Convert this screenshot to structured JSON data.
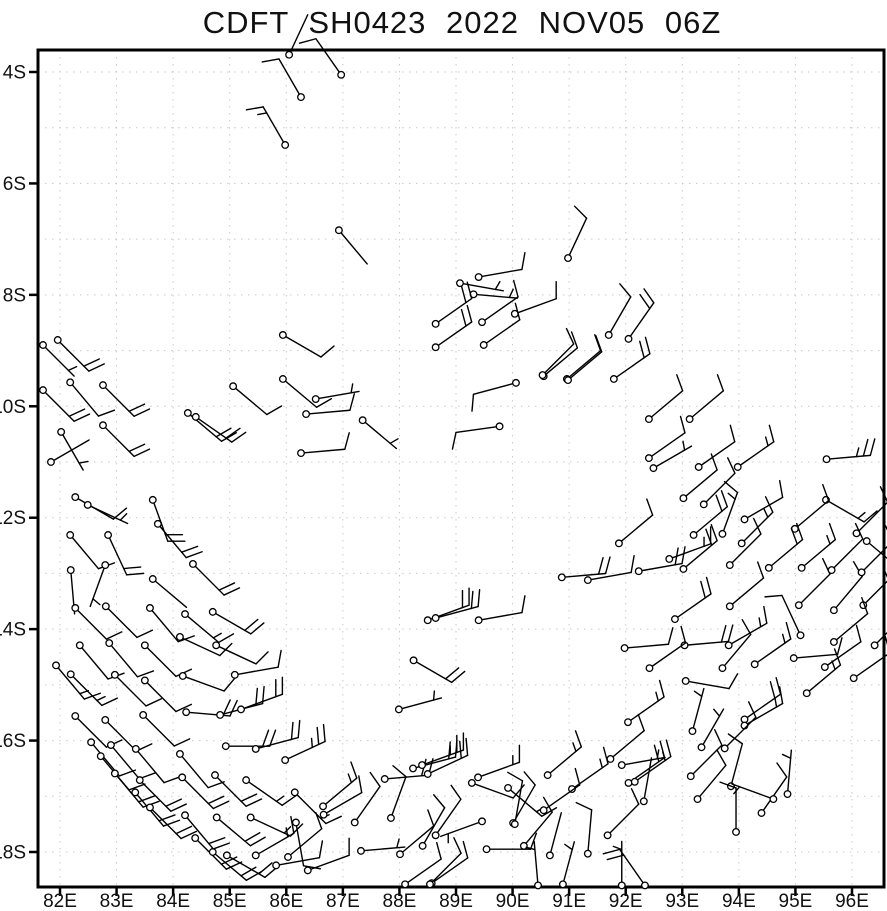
{
  "title": "CDFT SH0423 2022 NOV05 06Z",
  "axes": {
    "x": {
      "tick_labels": [
        "82E",
        "83E",
        "84E",
        "85E",
        "86E",
        "87E",
        "88E",
        "89E",
        "90E",
        "91E",
        "92E",
        "93E",
        "94E",
        "95E",
        "96E"
      ],
      "tick_values": [
        82,
        83,
        84,
        85,
        86,
        87,
        88,
        89,
        90,
        91,
        92,
        93,
        94,
        95,
        96
      ]
    },
    "y": {
      "tick_labels": [
        "4S",
        "6S",
        "8S",
        "10S",
        "12S",
        "14S",
        "16S",
        "18S"
      ],
      "tick_values": [
        4,
        6,
        8,
        10,
        12,
        14,
        16,
        18
      ]
    }
  },
  "chart_data": {
    "type": "scatter",
    "subtype": "wind-barb-field",
    "title": "CDFT SH0423 2022 NOV05 06Z",
    "x_axis": "longitude_deg_east",
    "y_axis": "latitude_deg_south",
    "x_range": [
      81.6,
      96.6
    ],
    "y_range": [
      3.6,
      18.6
    ],
    "grid": "dotted 1-degree spacing both axes",
    "colors": {
      "ink": "#000000",
      "grid": "#c9c9c9",
      "background": "#ffffff"
    },
    "barb_fields": [
      "lon_deg_east",
      "lat_deg_south",
      "staff_dir_deg_cw_from_north",
      "speed_kt"
    ],
    "barbs": [
      [
        86.97,
        4.05,
        325,
        10
      ],
      [
        86.26,
        4.45,
        330,
        10
      ],
      [
        85.98,
        5.31,
        330,
        15
      ],
      [
        86.05,
        3.69,
        25,
        3
      ],
      [
        86.93,
        6.84,
        140,
        3
      ],
      [
        90.98,
        7.34,
        25,
        10
      ],
      [
        89.4,
        7.68,
        80,
        10
      ],
      [
        89.07,
        7.79,
        100,
        5
      ],
      [
        89.31,
        7.99,
        95,
        5
      ],
      [
        88.64,
        8.52,
        55,
        20
      ],
      [
        90.04,
        8.34,
        70,
        10
      ],
      [
        89.46,
        8.49,
        55,
        10
      ],
      [
        89.49,
        8.9,
        55,
        10
      ],
      [
        88.64,
        8.94,
        55,
        20
      ],
      [
        90.55,
        9.46,
        50,
        10
      ],
      [
        90.96,
        9.51,
        50,
        10
      ],
      [
        90.06,
        9.58,
        255,
        10
      ],
      [
        89.77,
        10.36,
        262,
        10
      ],
      [
        87.35,
        10.25,
        130,
        5
      ],
      [
        91.7,
        8.72,
        30,
        10
      ],
      [
        92.05,
        8.79,
        35,
        20
      ],
      [
        81.7,
        8.9,
        135,
        5
      ],
      [
        81.96,
        8.81,
        135,
        20
      ],
      [
        82.18,
        9.57,
        140,
        10
      ],
      [
        81.7,
        9.71,
        135,
        20
      ],
      [
        82.76,
        9.62,
        135,
        20
      ],
      [
        82.02,
        10.46,
        150,
        5
      ],
      [
        81.84,
        11.0,
        60,
        3
      ],
      [
        82.76,
        10.34,
        135,
        20
      ],
      [
        82.27,
        11.63,
        120,
        10
      ],
      [
        82.49,
        11.77,
        115,
        5
      ],
      [
        83.64,
        11.68,
        160,
        20
      ],
      [
        83.73,
        12.11,
        140,
        20
      ],
      [
        82.18,
        12.31,
        140,
        10
      ],
      [
        82.85,
        12.31,
        155,
        20
      ],
      [
        82.19,
        12.94,
        175,
        3
      ],
      [
        82.8,
        12.85,
        200,
        5
      ],
      [
        83.64,
        13.1,
        130,
        3
      ],
      [
        84.35,
        12.83,
        135,
        20
      ],
      [
        85.94,
        8.72,
        120,
        10
      ],
      [
        85.06,
        9.64,
        130,
        10
      ],
      [
        85.94,
        9.51,
        130,
        10
      ],
      [
        86.52,
        9.87,
        80,
        5
      ],
      [
        86.35,
        10.14,
        85,
        10
      ],
      [
        86.26,
        10.84,
        85,
        10
      ],
      [
        84.26,
        10.12,
        130,
        20
      ],
      [
        84.4,
        10.19,
        125,
        20
      ],
      [
        82.27,
        13.62,
        135,
        10
      ],
      [
        82.81,
        13.59,
        135,
        10
      ],
      [
        83.59,
        13.62,
        140,
        10
      ],
      [
        84.21,
        13.73,
        130,
        15
      ],
      [
        84.7,
        13.69,
        120,
        20
      ],
      [
        82.35,
        14.29,
        140,
        10
      ],
      [
        82.87,
        14.25,
        140,
        10
      ],
      [
        83.5,
        14.29,
        135,
        10
      ],
      [
        84.12,
        14.14,
        115,
        10
      ],
      [
        84.76,
        14.29,
        115,
        10
      ],
      [
        81.93,
        14.65,
        140,
        15
      ],
      [
        82.19,
        14.81,
        135,
        15
      ],
      [
        82.97,
        14.82,
        135,
        10
      ],
      [
        83.5,
        14.92,
        135,
        10
      ],
      [
        84.17,
        14.84,
        110,
        10
      ],
      [
        85.09,
        14.82,
        80,
        10
      ],
      [
        82.27,
        15.56,
        135,
        10
      ],
      [
        82.8,
        15.63,
        135,
        10
      ],
      [
        83.47,
        15.54,
        135,
        10
      ],
      [
        84.23,
        15.49,
        95,
        20
      ],
      [
        84.83,
        15.54,
        75,
        20
      ],
      [
        85.2,
        15.44,
        70,
        20
      ],
      [
        82.55,
        16.03,
        140,
        10
      ],
      [
        82.9,
        16.08,
        140,
        10
      ],
      [
        83.34,
        16.15,
        140,
        10
      ],
      [
        84.12,
        16.24,
        140,
        10
      ],
      [
        84.93,
        16.1,
        90,
        20
      ],
      [
        85.46,
        16.15,
        75,
        20
      ],
      [
        85.98,
        16.35,
        65,
        25
      ],
      [
        82.72,
        16.28,
        140,
        10
      ],
      [
        82.97,
        16.59,
        140,
        20
      ],
      [
        83.41,
        16.71,
        135,
        20
      ],
      [
        83.33,
        16.93,
        140,
        20
      ],
      [
        83.59,
        17.2,
        135,
        20
      ],
      [
        84.16,
        16.66,
        135,
        20
      ],
      [
        84.74,
        16.62,
        135,
        20
      ],
      [
        84.21,
        17.34,
        140,
        20
      ],
      [
        84.39,
        17.75,
        135,
        20
      ],
      [
        84.77,
        17.38,
        130,
        20
      ],
      [
        84.7,
        18.0,
        130,
        20
      ],
      [
        84.95,
        18.06,
        120,
        20
      ],
      [
        85.29,
        16.71,
        125,
        15
      ],
      [
        86.15,
        16.93,
        135,
        15
      ],
      [
        85.37,
        17.38,
        115,
        15
      ],
      [
        86.17,
        17.47,
        170,
        10
      ],
      [
        85.46,
        18.06,
        60,
        15
      ],
      [
        85.82,
        18.24,
        80,
        10
      ],
      [
        86.03,
        18.09,
        50,
        10
      ],
      [
        86.38,
        18.33,
        70,
        10
      ],
      [
        88.5,
        13.84,
        70,
        20
      ],
      [
        88.64,
        13.8,
        75,
        20
      ],
      [
        89.4,
        13.84,
        80,
        10
      ],
      [
        88.25,
        14.56,
        120,
        20
      ],
      [
        87.99,
        15.44,
        75,
        5
      ],
      [
        87.74,
        16.69,
        85,
        20
      ],
      [
        88.24,
        16.5,
        75,
        20
      ],
      [
        88.4,
        16.44,
        70,
        25
      ],
      [
        88.5,
        16.6,
        65,
        20
      ],
      [
        89.39,
        16.66,
        70,
        15
      ],
      [
        89.28,
        16.76,
        110,
        10
      ],
      [
        89.92,
        16.85,
        130,
        15
      ],
      [
        90.01,
        17.48,
        30,
        10
      ],
      [
        90.62,
        16.62,
        50,
        15
      ],
      [
        91.05,
        16.87,
        55,
        15
      ],
      [
        90.55,
        17.25,
        55,
        10
      ],
      [
        86.65,
        17.18,
        50,
        15
      ],
      [
        86.66,
        17.33,
        60,
        10
      ],
      [
        87.21,
        17.47,
        35,
        10
      ],
      [
        87.85,
        17.39,
        20,
        10
      ],
      [
        87.32,
        17.98,
        85,
        5
      ],
      [
        88.01,
        18.04,
        50,
        10
      ],
      [
        88.41,
        17.89,
        30,
        10
      ],
      [
        88.64,
        17.7,
        35,
        10
      ],
      [
        89.46,
        17.45,
        250,
        5
      ],
      [
        90.04,
        17.5,
        10,
        10
      ],
      [
        89.54,
        17.95,
        90,
        10
      ],
      [
        90.2,
        17.89,
        40,
        10
      ],
      [
        90.45,
        18.6,
        355,
        5
      ],
      [
        90.66,
        18.06,
        15,
        3
      ],
      [
        91.33,
        18.03,
        5,
        10
      ],
      [
        91.68,
        17.7,
        45,
        10
      ],
      [
        88.57,
        18.56,
        55,
        10
      ],
      [
        90.89,
        18.58,
        15,
        5
      ],
      [
        88.1,
        18.58,
        55,
        10
      ],
      [
        88.54,
        18.58,
        45,
        10
      ],
      [
        92.87,
        13.82,
        55,
        20
      ],
      [
        93.84,
        13.59,
        50,
        10
      ],
      [
        95.06,
        13.57,
        45,
        10
      ],
      [
        95.68,
        13.66,
        40,
        10
      ],
      [
        96.2,
        13.57,
        45,
        5
      ],
      [
        91.98,
        14.34,
        85,
        10
      ],
      [
        93.04,
        14.29,
        85,
        20
      ],
      [
        93.82,
        14.29,
        60,
        15
      ],
      [
        95.09,
        14.11,
        335,
        10
      ],
      [
        95.68,
        14.23,
        50,
        10
      ],
      [
        92.42,
        14.7,
        55,
        10
      ],
      [
        93.71,
        14.7,
        40,
        10
      ],
      [
        94.28,
        14.63,
        55,
        15
      ],
      [
        94.97,
        14.52,
        85,
        10
      ],
      [
        95.52,
        14.68,
        55,
        10
      ],
      [
        96.4,
        14.29,
        45,
        5
      ],
      [
        96.03,
        14.88,
        55,
        10
      ],
      [
        93.06,
        14.93,
        100,
        10
      ],
      [
        95.2,
        15.15,
        50,
        15
      ],
      [
        92.04,
        15.67,
        55,
        15
      ],
      [
        94.1,
        15.62,
        55,
        20
      ],
      [
        94.1,
        15.73,
        60,
        15
      ],
      [
        93.18,
        15.83,
        15,
        5
      ],
      [
        93.34,
        16.12,
        30,
        5
      ],
      [
        93.75,
        16.14,
        45,
        10
      ],
      [
        91.73,
        16.33,
        50,
        10
      ],
      [
        91.93,
        16.44,
        80,
        5
      ],
      [
        92.05,
        16.76,
        55,
        20
      ],
      [
        92.16,
        16.74,
        55,
        15
      ],
      [
        92.32,
        17.09,
        10,
        3
      ],
      [
        93.27,
        17.05,
        40,
        10
      ],
      [
        93.15,
        16.64,
        45,
        10
      ],
      [
        93.86,
        16.82,
        15,
        10
      ],
      [
        94.4,
        17.3,
        35,
        10
      ],
      [
        94.61,
        17.05,
        290,
        5
      ],
      [
        94.86,
        16.96,
        5,
        5
      ],
      [
        93.95,
        17.64,
        0,
        10
      ],
      [
        92.34,
        18.6,
        325,
        20
      ],
      [
        91.93,
        18.6,
        0,
        5
      ],
      [
        91.79,
        9.51,
        55,
        20
      ],
      [
        92.41,
        10.23,
        50,
        10
      ],
      [
        93.13,
        10.23,
        50,
        10
      ],
      [
        92.41,
        10.93,
        55,
        10
      ],
      [
        92.49,
        11.11,
        60,
        5
      ],
      [
        93.29,
        11.09,
        55,
        10
      ],
      [
        93.98,
        11.09,
        55,
        15
      ],
      [
        95.55,
        10.95,
        85,
        25
      ],
      [
        93.02,
        11.65,
        50,
        10
      ],
      [
        93.38,
        11.76,
        45,
        10
      ],
      [
        95.54,
        11.68,
        120,
        15
      ],
      [
        94.1,
        12.03,
        60,
        10
      ],
      [
        94.99,
        12.2,
        50,
        10
      ],
      [
        96.08,
        12.28,
        45,
        10
      ],
      [
        91.88,
        12.46,
        50,
        10
      ],
      [
        93.2,
        12.31,
        50,
        20
      ],
      [
        93.71,
        12.29,
        20,
        15
      ],
      [
        94.05,
        12.46,
        45,
        15
      ],
      [
        96.26,
        12.42,
        130,
        5
      ],
      [
        92.23,
        12.96,
        80,
        20
      ],
      [
        92.77,
        12.74,
        70,
        15
      ],
      [
        93.02,
        12.92,
        50,
        20
      ],
      [
        93.84,
        12.85,
        45,
        10
      ],
      [
        94.53,
        12.9,
        50,
        20
      ],
      [
        95.11,
        12.9,
        50,
        15
      ],
      [
        95.64,
        12.94,
        45,
        10
      ],
      [
        96.17,
        12.98,
        45,
        10
      ],
      [
        90.87,
        13.07,
        85,
        20
      ],
      [
        91.33,
        13.12,
        80,
        10
      ],
      [
        90.53,
        9.44,
        45,
        10
      ],
      [
        90.98,
        9.53,
        50,
        10
      ]
    ]
  }
}
